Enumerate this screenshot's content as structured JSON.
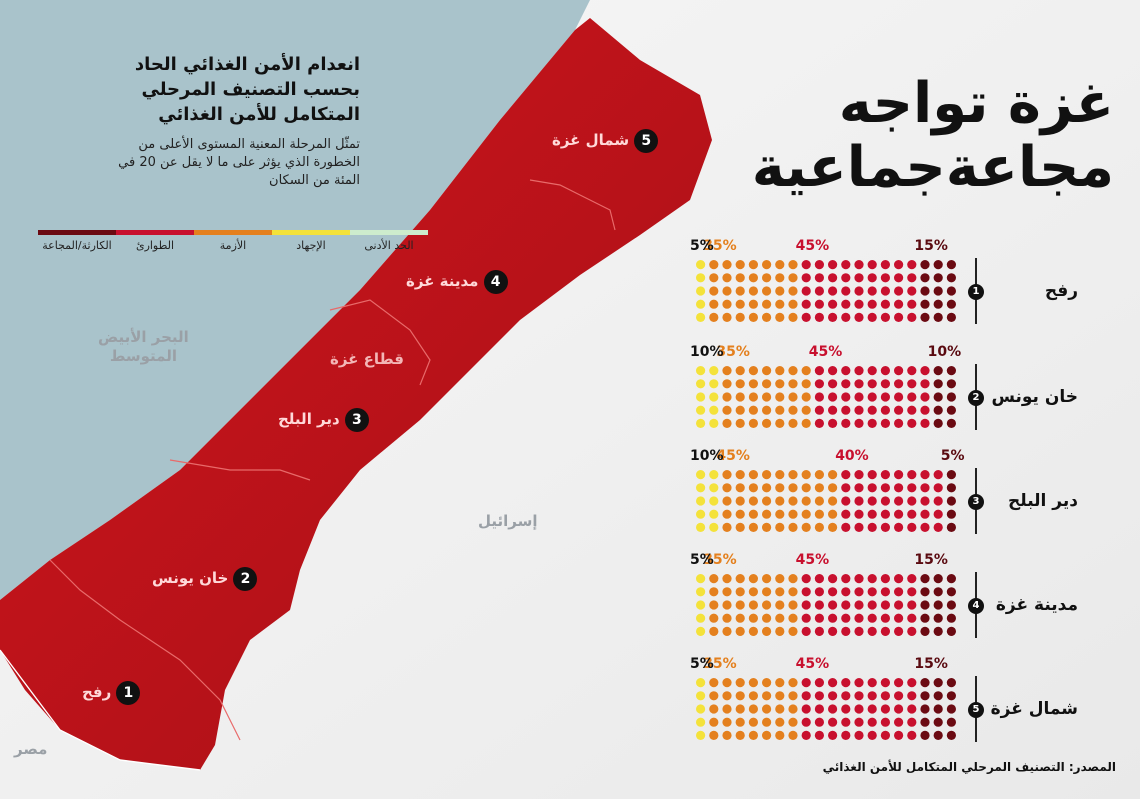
{
  "title": {
    "line1": "غزة تواجه",
    "line2": "مجاعةجماعية"
  },
  "subtitle": [
    "انعدام الأمن الغذائي الحاد",
    "بحسب التصنيف المرحلي",
    "المتكامل للأمن الغذائي"
  ],
  "note": [
    "تمثّل المرحلة المعنية المستوى الأعلى من",
    "الخطورة الذي يؤثر على ما لا يقل عن 20 في",
    "المئة من السكان"
  ],
  "legend": [
    {
      "label": "الحد الأدنى",
      "color": "#cdeccd"
    },
    {
      "label": "الإجهاد",
      "color": "#f4e23a"
    },
    {
      "label": "الأزمة",
      "color": "#e4801e"
    },
    {
      "label": "الطوارئ",
      "color": "#c8102e"
    },
    {
      "label": "الكارثة/المجاعة",
      "color": "#6b0a12"
    }
  ],
  "map_labels": {
    "sea": [
      "البحر الأبيض",
      "المتوسط"
    ],
    "israel": "إسرائيل",
    "egypt": "مصر",
    "strip": "قطاع غزة"
  },
  "governorates": [
    {
      "num": "5",
      "name": "شمال غزة"
    },
    {
      "num": "4",
      "name": "مدينة غزة"
    },
    {
      "num": "3",
      "name": "دير البلح"
    },
    {
      "num": "2",
      "name": "خان يونس"
    },
    {
      "num": "1",
      "name": "رفح"
    }
  ],
  "chart_data": {
    "type": "table",
    "units": "percent of population",
    "phase_order": [
      "الكارثة/المجاعة",
      "الطوارئ",
      "الأزمة",
      "الإجهاد"
    ],
    "rows": [
      {
        "num": "1",
        "name": "رفح",
        "catastrophe": 15,
        "emergency": 45,
        "crisis": 35,
        "stress": 5,
        "labels": [
          "15%",
          "45%",
          "35%",
          "5%"
        ]
      },
      {
        "num": "2",
        "name": "خان يونس",
        "catastrophe": 10,
        "emergency": 45,
        "crisis": 35,
        "stress": 10,
        "labels": [
          "10%",
          "45%",
          "35%",
          "10%"
        ]
      },
      {
        "num": "3",
        "name": "دير البلح",
        "catastrophe": 5,
        "emergency": 40,
        "crisis": 45,
        "stress": 10,
        "labels": [
          "5%",
          "40%",
          "45%",
          "10%"
        ]
      },
      {
        "num": "4",
        "name": "مدينة غزة",
        "catastrophe": 15,
        "emergency": 45,
        "crisis": 35,
        "stress": 5,
        "labels": [
          "15%",
          "45%",
          "35%",
          "5%"
        ]
      },
      {
        "num": "5",
        "name": "شمال غزة",
        "catastrophe": 15,
        "emergency": 45,
        "crisis": 35,
        "stress": 5,
        "labels": [
          "15%",
          "45%",
          "35%",
          "5%"
        ]
      }
    ]
  },
  "colors": {
    "catastrophe": "#6b0a12",
    "emergency": "#c8102e",
    "crisis": "#e4801e",
    "stress": "#f4e23a",
    "sea": "#a9c3cb",
    "strip": "#c8141b"
  },
  "source": "المصدر: التصنيف المرحلي المتكامل للأمن الغذائي"
}
